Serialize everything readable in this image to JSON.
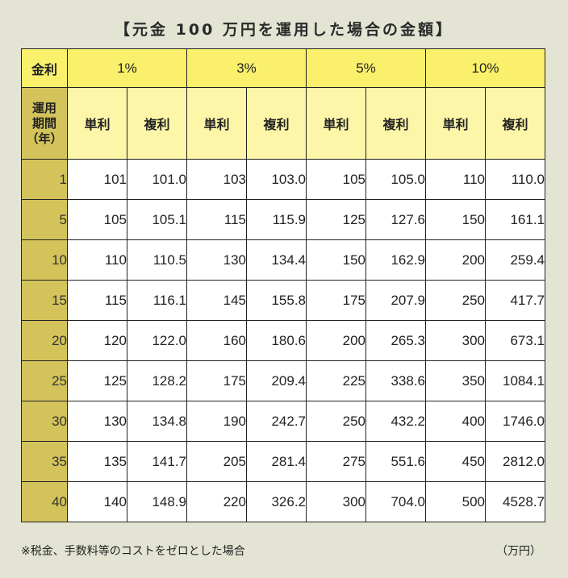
{
  "title": "【元金 100 万円を運用した場合の金額】",
  "table": {
    "corner_label": "金利",
    "period_label": "運用\n期間\n（年）",
    "rates": [
      "1%",
      "3%",
      "5%",
      "10%"
    ],
    "sub_headers": [
      "単利",
      "複利",
      "単利",
      "複利",
      "単利",
      "複利",
      "単利",
      "複利"
    ],
    "rows": [
      {
        "year": "1",
        "values": [
          "101",
          "101.0",
          "103",
          "103.0",
          "105",
          "105.0",
          "110",
          "110.0"
        ]
      },
      {
        "year": "5",
        "values": [
          "105",
          "105.1",
          "115",
          "115.9",
          "125",
          "127.6",
          "150",
          "161.1"
        ]
      },
      {
        "year": "10",
        "values": [
          "110",
          "110.5",
          "130",
          "134.4",
          "150",
          "162.9",
          "200",
          "259.4"
        ]
      },
      {
        "year": "15",
        "values": [
          "115",
          "116.1",
          "145",
          "155.8",
          "175",
          "207.9",
          "250",
          "417.7"
        ]
      },
      {
        "year": "20",
        "values": [
          "120",
          "122.0",
          "160",
          "180.6",
          "200",
          "265.3",
          "300",
          "673.1"
        ]
      },
      {
        "year": "25",
        "values": [
          "125",
          "128.2",
          "175",
          "209.4",
          "225",
          "338.6",
          "350",
          "1084.1"
        ]
      },
      {
        "year": "30",
        "values": [
          "130",
          "134.8",
          "190",
          "242.7",
          "250",
          "432.2",
          "400",
          "1746.0"
        ]
      },
      {
        "year": "35",
        "values": [
          "135",
          "141.7",
          "205",
          "281.4",
          "275",
          "551.6",
          "450",
          "2812.0"
        ]
      },
      {
        "year": "40",
        "values": [
          "140",
          "148.9",
          "220",
          "326.2",
          "300",
          "704.0",
          "500",
          "4528.7"
        ]
      }
    ]
  },
  "footnote": "※税金、手数料等のコストをゼロとした場合",
  "unit": "（万円）",
  "colors": {
    "background": "#e4e4d4",
    "header_rate": "#fbf06b",
    "header_sub": "#fdf6a8",
    "year_column": "#d3c35a",
    "cell": "#ffffff",
    "border": "#222222"
  }
}
